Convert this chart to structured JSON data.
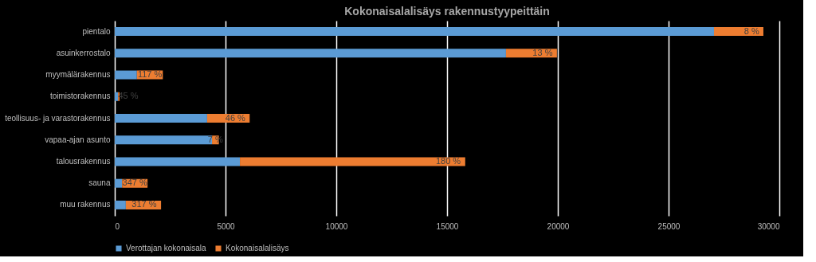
{
  "chart_data": {
    "type": "bar",
    "orientation": "horizontal",
    "stacked": true,
    "title": "Kokonaisalalisäys rakennustyypeittäin",
    "categories": [
      "pientalo",
      "asuinkerrostalo",
      "myymälärakennus",
      "toimistorakennus",
      "teollisuus- ja varastorakennus",
      "vapaa-ajan asunto",
      "talousrakennus",
      "sauna",
      "muu rakennus"
    ],
    "series": [
      {
        "name": "Verottajan kokonaisala",
        "color": "#5b9bd5",
        "values": [
          27050,
          17660,
          1000,
          150,
          4170,
          4390,
          5650,
          330,
          500
        ]
      },
      {
        "name": "Kokonaisalalisäys",
        "color": "#ed7d31",
        "values": [
          2230,
          2300,
          1170,
          70,
          1920,
          310,
          10170,
          1150,
          1590
        ]
      }
    ],
    "annotations": [
      {
        "text": "8 %",
        "x": 29280,
        "y": "pientalo"
      },
      {
        "text": "13 %",
        "x": 19960,
        "y": "asuinkerrostalo"
      },
      {
        "text": "117 %",
        "x": 2170,
        "y": "myymälärakennus"
      },
      {
        "text": "45 %",
        "x": 220,
        "y": "toimistorakennus"
      },
      {
        "text": "46 %",
        "x": 6090,
        "y": "teollisuus- ja varastorakennus"
      },
      {
        "text": "7 %",
        "x": 4700,
        "y": "vapaa-ajan asunto"
      },
      {
        "text": "180 %",
        "x": 15820,
        "y": "talousrakennus"
      },
      {
        "text": "347 %",
        "x": 1480,
        "y": "sauna"
      },
      {
        "text": "317 %",
        "x": 2090,
        "y": "muu rakennus"
      }
    ],
    "xlim": [
      0,
      30000
    ],
    "xticks": [
      0,
      5000,
      10000,
      15000,
      20000,
      25000,
      30000
    ],
    "grid": "x",
    "legend": "bottom"
  }
}
